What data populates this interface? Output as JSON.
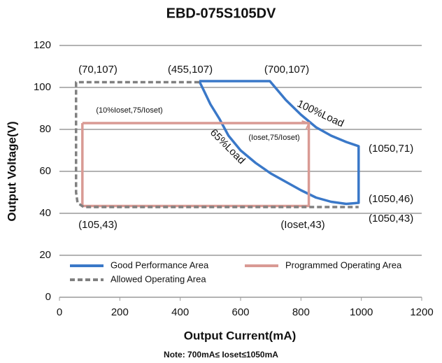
{
  "chart_data": {
    "type": "line",
    "title": "EBD-075S105DV",
    "xlabel": "Output Current(mA)",
    "ylabel": "Output Voltage(V)",
    "note": "Note: 700mA≤ Ioset≤1050mA",
    "xlim": [
      0,
      1200
    ],
    "xticks": [
      0,
      200,
      400,
      600,
      800,
      1000,
      1200
    ],
    "ylim": [
      0,
      120
    ],
    "yticks": [
      0,
      20,
      40,
      60,
      80,
      100,
      120
    ],
    "grid": true,
    "legend": "lower left",
    "series": [
      {
        "name": "Good Performance Area",
        "color": "#3a78c8",
        "style": "solid",
        "x": [
          463,
          697,
          750,
          800,
          850,
          900,
          950,
          991,
          991,
          950,
          900,
          850,
          800,
          750,
          700,
          650,
          600,
          560,
          530,
          500,
          480,
          463
        ],
        "values": [
          103,
          103,
          94,
          87,
          81,
          77,
          74,
          72,
          45,
          44.5,
          45.5,
          47.5,
          51,
          55,
          59,
          64,
          70,
          77,
          85,
          92,
          98,
          103
        ]
      },
      {
        "name": "Programmed Operating Area",
        "color": "#d99a94",
        "style": "solid",
        "x": [
          76,
          826,
          826,
          76,
          76
        ],
        "values": [
          83,
          83,
          43.5,
          43.5,
          83
        ]
      },
      {
        "name": "Allowed Operating Area",
        "color": "#808080",
        "style": "dashed",
        "x": [
          463,
          55,
          55,
          60,
          80,
          991
        ],
        "values": [
          102.5,
          102.5,
          50,
          45,
          43,
          43
        ]
      }
    ],
    "annotations": [
      "(70,107)",
      "(455,107)",
      "(700,107)",
      "100%Load",
      "(1050,71)",
      "65%Load",
      "(Ioset,75/Ioset)",
      "(10%Ioset,75/Ioset)",
      "(1050,46)",
      "(105,43)",
      "(Ioset,43)",
      "(1050,43)"
    ]
  }
}
